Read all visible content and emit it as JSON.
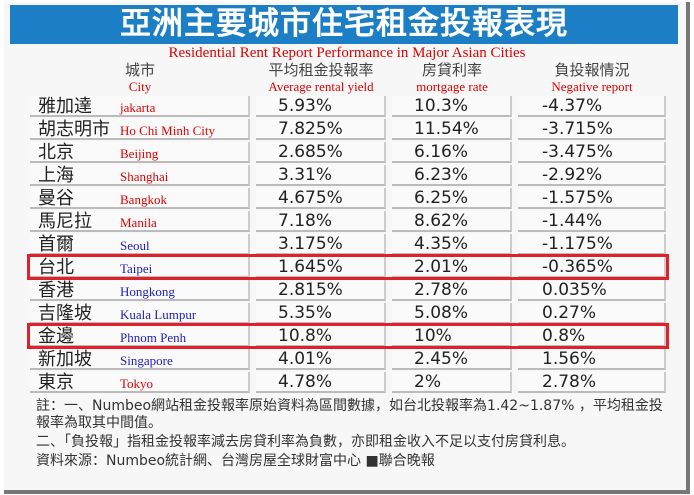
{
  "title": "亞洲主要城市住宅租金投報表現",
  "title_en": "Residential Rent Report Performance in Major Asian Cities",
  "headers": [
    {
      "zh": "城市",
      "en": "City"
    },
    {
      "zh": "平均租金投報率",
      "en": "Average rental yield"
    },
    {
      "zh": "房貸利率",
      "en": "mortgage rate"
    },
    {
      "zh": "負投報情況",
      "en": "Negative report"
    }
  ],
  "rows": [
    {
      "city": "雅加達",
      "en": "jakarta",
      "yield": "5.93%",
      "mortgage": "10.3%",
      "negative": "-4.37%"
    },
    {
      "city": "胡志明市",
      "en": "Ho Chi Minh City",
      "yield": "7.825%",
      "mortgage": "11.54%",
      "negative": "-3.715%"
    },
    {
      "city": "北京",
      "en": "Beijing",
      "yield": "2.685%",
      "mortgage": "6.16%",
      "negative": "-3.475%"
    },
    {
      "city": "上海",
      "en": "Shanghai",
      "yield": "3.31%",
      "mortgage": "6.23%",
      "negative": "-2.92%"
    },
    {
      "city": "曼谷",
      "en": "Bangkok",
      "yield": "4.675%",
      "mortgage": "6.25%",
      "negative": "-1.575%"
    },
    {
      "city": "馬尼拉",
      "en": "Manila",
      "yield": "7.18%",
      "mortgage": "8.62%",
      "negative": "-1.44%"
    },
    {
      "city": "首爾",
      "en": "Seoul",
      "yield": "3.175%",
      "mortgage": "4.35%",
      "negative": "-1.175%"
    },
    {
      "city": "台北",
      "en": "Taipei",
      "yield": "1.645%",
      "mortgage": "2.01%",
      "negative": "-0.365%"
    },
    {
      "city": "香港",
      "en": "Hongkong",
      "yield": "2.815%",
      "mortgage": "2.78%",
      "negative": "0.035%"
    },
    {
      "city": "吉隆坡",
      "en": "Kuala Lumpur",
      "yield": "5.35%",
      "mortgage": "5.08%",
      "negative": "0.27%"
    },
    {
      "city": "金邊",
      "en": "Phnom Penh",
      "yield": "10.8%",
      "mortgage": "10%",
      "negative": "0.8%"
    },
    {
      "city": "新加坡",
      "en": "Singapore",
      "yield": "4.01%",
      "mortgage": "2.45%",
      "negative": "1.56%"
    },
    {
      "city": "東京",
      "en": "Tokyo",
      "yield": "4.78%",
      "mortgage": "2%",
      "negative": "2.78%"
    }
  ],
  "notes": [
    "註：一、Numbeo網站租金投報率原始資料為區間數據，如台北投報率為1.42~1.87% ，平均租金投報率為取其中間值。",
    "二、「負投報」指租金投報率減去房貸利率為負數，亦即租金收入不足以支付房貸利息。",
    "資料來源：Numbeo統計網、台灣房屋全球財富中心 ■聯合晚報"
  ],
  "colors": {
    "banner": "#1c7fc6",
    "highlight": "#e0202a",
    "label_red": "#e00000",
    "label_blue": "#2020c0"
  }
}
